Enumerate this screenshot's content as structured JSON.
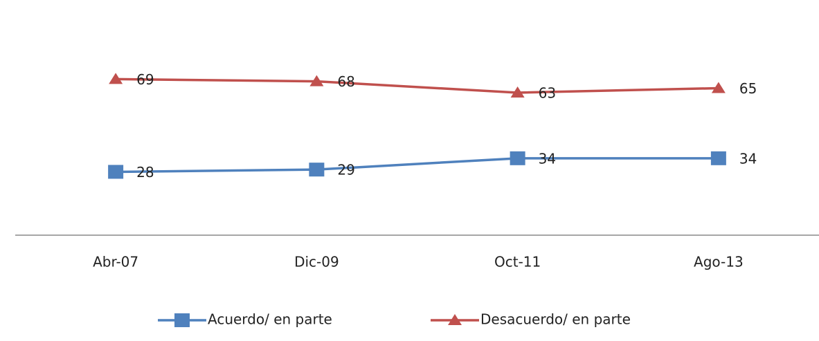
{
  "chart_data": {
    "type": "line",
    "categories": [
      "Abr-07",
      "Dic-09",
      "Oct-11",
      "Ago-13"
    ],
    "series": [
      {
        "name": "Acuerdo/ en parte",
        "color": "#4f81bd",
        "marker": "square",
        "values": [
          28,
          29,
          34,
          34
        ]
      },
      {
        "name": "Desacuerdo/ en parte",
        "color": "#c0504d",
        "marker": "triangle",
        "values": [
          69,
          68,
          63,
          65
        ]
      }
    ],
    "ylim": [
      0,
      100
    ]
  }
}
